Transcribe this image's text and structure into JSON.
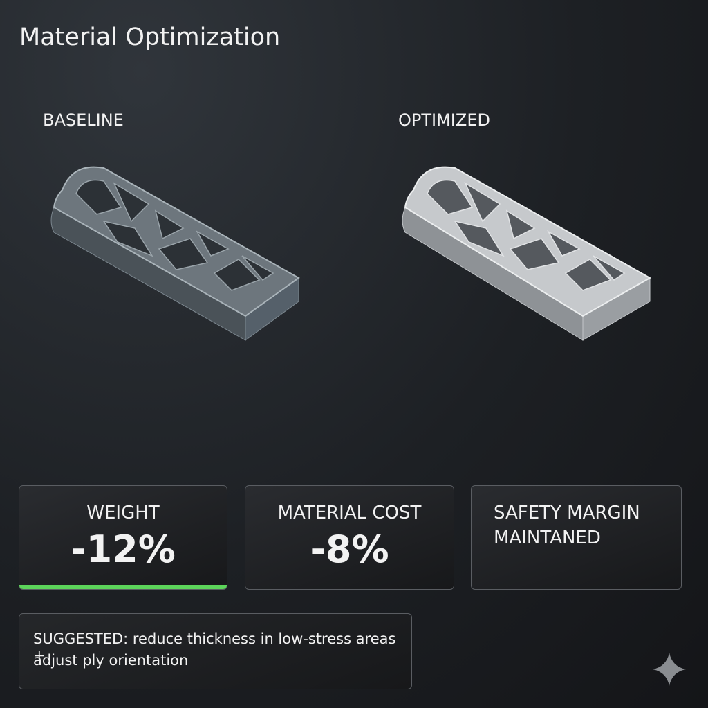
{
  "header": {
    "title": "Material Optimization"
  },
  "panels": [
    {
      "label": "BASELINE"
    },
    {
      "label": "OPTIMIZED"
    }
  ],
  "metrics": [
    {
      "label": "WEIGHT",
      "value": "-12%"
    },
    {
      "label": "MATERIAL COST",
      "value": "-8%"
    },
    {
      "lines": [
        "SAFETY MARGIN",
        "MAINTANED"
      ]
    }
  ],
  "suggestion": {
    "lines": [
      "SUGGESTED: reduce thickness in low-stress areas +",
      "adjust ply orientation"
    ]
  }
}
